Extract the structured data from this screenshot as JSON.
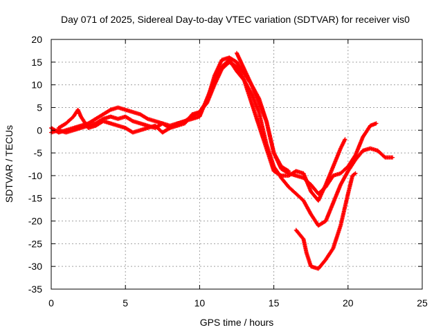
{
  "chart_data": {
    "type": "scatter",
    "title": "Day 071 of 2025, Sidereal Day-to-day VTEC variation (SDTVAR) for receiver vis0",
    "xlabel": "GPS time / hours",
    "ylabel": "SDTVAR / TECUs",
    "xlim": [
      0,
      25
    ],
    "ylim": [
      -35,
      20
    ],
    "xticks": [
      0,
      5,
      10,
      15,
      20,
      25
    ],
    "yticks": [
      20,
      15,
      10,
      5,
      0,
      -5,
      -10,
      -15,
      -20,
      -25,
      -30,
      -35
    ],
    "grid": true,
    "legend": "none",
    "marker": "plus",
    "color": "#ff0000",
    "series": [
      {
        "points": [
          [
            0.0,
            0.5
          ],
          [
            0.5,
            -0.5
          ],
          [
            1.0,
            0.0
          ],
          [
            1.5,
            0.5
          ],
          [
            2.0,
            1.0
          ],
          [
            2.5,
            1.5
          ],
          [
            3.0,
            2.5
          ],
          [
            3.5,
            3.5
          ],
          [
            4.0,
            4.5
          ],
          [
            4.5,
            5.0
          ],
          [
            5.0,
            4.5
          ],
          [
            5.5,
            4.0
          ],
          [
            6.0,
            3.5
          ],
          [
            6.5,
            2.5
          ],
          [
            7.0,
            2.0
          ],
          [
            7.5,
            1.5
          ],
          [
            8.0,
            1.0
          ],
          [
            8.5,
            1.5
          ],
          [
            9.0,
            2.0
          ],
          [
            9.5,
            3.0
          ],
          [
            10.0,
            4.0
          ],
          [
            10.5,
            6.0
          ],
          [
            11.0,
            10.0
          ],
          [
            11.5,
            13.5
          ],
          [
            12.0,
            15.0
          ],
          [
            12.5,
            14.0
          ],
          [
            13.0,
            11.0
          ],
          [
            13.5,
            6.0
          ],
          [
            14.0,
            1.0
          ],
          [
            14.5,
            -4.0
          ],
          [
            15.0,
            -9.0
          ],
          [
            15.5,
            -10.0
          ],
          [
            16.0,
            -10.0
          ],
          [
            16.5,
            -9.0
          ],
          [
            17.0,
            -9.5
          ],
          [
            17.5,
            -13.5
          ],
          [
            18.0,
            -15.5
          ],
          [
            18.5,
            -12.0
          ],
          [
            19.0,
            -8.0
          ],
          [
            19.5,
            -4.0
          ],
          [
            19.8,
            -2.0
          ]
        ]
      },
      {
        "points": [
          [
            0.0,
            -0.5
          ],
          [
            0.5,
            0.0
          ],
          [
            1.0,
            -0.5
          ],
          [
            1.5,
            0.0
          ],
          [
            2.0,
            0.5
          ],
          [
            2.5,
            1.0
          ],
          [
            3.0,
            1.5
          ],
          [
            3.5,
            2.5
          ],
          [
            4.0,
            3.0
          ],
          [
            4.5,
            2.5
          ],
          [
            5.0,
            3.0
          ],
          [
            5.5,
            2.0
          ],
          [
            6.0,
            1.5
          ],
          [
            6.5,
            1.0
          ],
          [
            7.0,
            0.5
          ],
          [
            7.5,
            1.5
          ],
          [
            8.0,
            0.5
          ],
          [
            8.5,
            1.5
          ],
          [
            9.0,
            2.0
          ],
          [
            9.5,
            2.5
          ],
          [
            10.0,
            3.0
          ],
          [
            10.5,
            7.0
          ],
          [
            11.0,
            11.0
          ],
          [
            11.5,
            14.0
          ],
          [
            12.0,
            15.5
          ],
          [
            12.5,
            13.0
          ],
          [
            13.0,
            11.0
          ],
          [
            13.5,
            8.0
          ],
          [
            14.0,
            4.0
          ],
          [
            14.5,
            -3.0
          ],
          [
            15.0,
            -8.0
          ],
          [
            15.5,
            -10.5
          ],
          [
            16.0,
            -12.5
          ],
          [
            16.5,
            -14.0
          ],
          [
            17.0,
            -15.5
          ],
          [
            17.5,
            -18.5
          ],
          [
            18.0,
            -21.0
          ],
          [
            18.5,
            -20.0
          ],
          [
            19.0,
            -16.0
          ],
          [
            19.5,
            -12.0
          ],
          [
            20.0,
            -9.0
          ],
          [
            20.5,
            -6.5
          ],
          [
            21.0,
            -4.5
          ],
          [
            21.5,
            -4.0
          ],
          [
            22.0,
            -4.5
          ],
          [
            22.5,
            -6.0
          ],
          [
            23.0,
            -6.0
          ]
        ]
      },
      {
        "points": [
          [
            0.5,
            0.5
          ],
          [
            1.0,
            1.5
          ],
          [
            1.5,
            3.0
          ],
          [
            1.8,
            4.5
          ],
          [
            2.0,
            3.0
          ],
          [
            2.5,
            0.5
          ],
          [
            3.0,
            1.0
          ],
          [
            3.5,
            2.0
          ],
          [
            4.0,
            1.5
          ],
          [
            4.5,
            1.0
          ],
          [
            5.0,
            0.5
          ],
          [
            5.5,
            -0.5
          ],
          [
            6.0,
            0.0
          ],
          [
            6.5,
            0.5
          ],
          [
            7.0,
            1.0
          ],
          [
            7.5,
            -0.5
          ],
          [
            8.0,
            0.5
          ],
          [
            9.0,
            1.5
          ],
          [
            9.5,
            3.5
          ],
          [
            10.0,
            4.0
          ],
          [
            10.5,
            6.5
          ],
          [
            11.0,
            12.0
          ],
          [
            11.5,
            15.5
          ],
          [
            12.0,
            16.0
          ],
          [
            12.5,
            15.0
          ],
          [
            13.0,
            12.5
          ],
          [
            13.5,
            10.0
          ],
          [
            14.0,
            6.0
          ],
          [
            14.5,
            2.0
          ],
          [
            15.0,
            -5.0
          ],
          [
            15.5,
            -8.5
          ],
          [
            16.0,
            -9.5
          ],
          [
            16.5,
            -10.0
          ],
          [
            17.0,
            -10.5
          ],
          [
            17.5,
            -12.0
          ],
          [
            18.0,
            -14.0
          ],
          [
            18.5,
            -12.5
          ],
          [
            19.0,
            -10.0
          ],
          [
            19.5,
            -9.5
          ],
          [
            20.0,
            -8.0
          ],
          [
            20.5,
            -5.5
          ],
          [
            21.0,
            -1.5
          ],
          [
            21.5,
            1.0
          ],
          [
            21.9,
            1.5
          ]
        ]
      },
      {
        "points": [
          [
            12.5,
            17.0
          ],
          [
            13.0,
            13.5
          ],
          [
            13.5,
            10.0
          ],
          [
            14.0,
            7.0
          ],
          [
            14.5,
            2.0
          ],
          [
            15.0,
            -5.0
          ],
          [
            15.5,
            -8.0
          ],
          [
            16.0,
            -9.0
          ]
        ]
      },
      {
        "points": [
          [
            16.5,
            -22.0
          ],
          [
            17.0,
            -24.0
          ],
          [
            17.2,
            -27.0
          ],
          [
            17.5,
            -30.0
          ],
          [
            18.0,
            -30.5
          ],
          [
            18.5,
            -28.5
          ],
          [
            19.0,
            -26.0
          ],
          [
            19.5,
            -21.0
          ],
          [
            20.0,
            -14.0
          ],
          [
            20.3,
            -10.0
          ],
          [
            20.5,
            -9.5
          ]
        ]
      }
    ]
  }
}
